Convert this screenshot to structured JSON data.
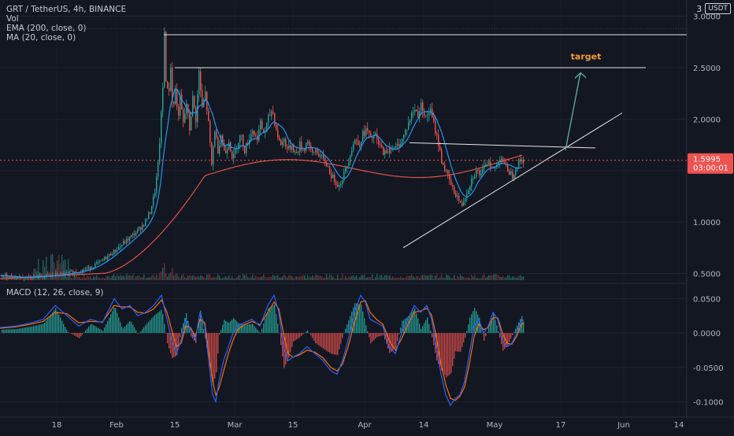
{
  "chart_data": [
    {
      "type": "candlestick",
      "title": "GRT / TetherUS, 4h, BINANCE",
      "indicators": [
        "Vol",
        "EMA (200, close, 0)",
        "MA (20, close, 0)"
      ],
      "currency": "USDT",
      "scale_label": "3",
      "y_ticks": [
        "3.0000",
        "2.5000",
        "2.0000",
        "1.5000",
        "1.0000",
        "0.5000"
      ],
      "ylim": [
        0.42,
        3.05
      ],
      "x_ticks": [
        "18",
        "Feb",
        "15",
        "Mar",
        "15",
        "Apr",
        "14",
        "May",
        "17",
        "Jun",
        "14"
      ],
      "last_price": "1.5995",
      "countdown": "03:00:01",
      "annotation": "target",
      "price_path": [
        [
          0,
          0.48
        ],
        [
          25,
          0.46
        ],
        [
          50,
          0.47
        ],
        [
          75,
          0.49
        ],
        [
          100,
          0.52
        ],
        [
          115,
          0.56
        ],
        [
          130,
          0.63
        ],
        [
          145,
          0.72
        ],
        [
          160,
          0.82
        ],
        [
          172,
          0.9
        ],
        [
          182,
          0.98
        ],
        [
          190,
          1.1
        ],
        [
          196,
          1.3
        ],
        [
          200,
          1.55
        ],
        [
          203,
          1.9
        ],
        [
          206,
          2.3
        ],
        [
          208,
          2.85
        ],
        [
          210,
          2.4
        ],
        [
          213,
          2.2
        ],
        [
          216,
          2.5
        ],
        [
          219,
          2.05
        ],
        [
          222,
          2.3
        ],
        [
          225,
          2.0
        ],
        [
          228,
          2.2
        ],
        [
          232,
          1.95
        ],
        [
          236,
          2.15
        ],
        [
          240,
          1.9
        ],
        [
          244,
          2.2
        ],
        [
          248,
          2.0
        ],
        [
          252,
          2.45
        ],
        [
          256,
          2.1
        ],
        [
          260,
          2.25
        ],
        [
          264,
          1.95
        ],
        [
          268,
          1.55
        ],
        [
          272,
          1.9
        ],
        [
          276,
          1.7
        ],
        [
          280,
          1.85
        ],
        [
          285,
          1.65
        ],
        [
          290,
          1.8
        ],
        [
          295,
          1.6
        ],
        [
          300,
          1.75
        ],
        [
          305,
          1.85
        ],
        [
          310,
          1.7
        ],
        [
          315,
          1.8
        ],
        [
          320,
          1.9
        ],
        [
          325,
          1.8
        ],
        [
          330,
          1.95
        ],
        [
          335,
          1.85
        ],
        [
          340,
          2.0
        ],
        [
          345,
          2.1
        ],
        [
          350,
          1.9
        ],
        [
          355,
          1.75
        ],
        [
          360,
          1.8
        ],
        [
          365,
          1.7
        ],
        [
          370,
          1.75
        ],
        [
          375,
          1.65
        ],
        [
          380,
          1.75
        ],
        [
          385,
          1.7
        ],
        [
          390,
          1.8
        ],
        [
          395,
          1.65
        ],
        [
          400,
          1.7
        ],
        [
          405,
          1.65
        ],
        [
          410,
          1.6
        ],
        [
          415,
          1.55
        ],
        [
          420,
          1.45
        ],
        [
          425,
          1.4
        ],
        [
          430,
          1.35
        ],
        [
          435,
          1.45
        ],
        [
          440,
          1.55
        ],
        [
          445,
          1.7
        ],
        [
          450,
          1.8
        ],
        [
          455,
          1.75
        ],
        [
          460,
          1.85
        ],
        [
          465,
          1.9
        ],
        [
          470,
          1.8
        ],
        [
          475,
          1.85
        ],
        [
          480,
          1.75
        ],
        [
          485,
          1.7
        ],
        [
          490,
          1.65
        ],
        [
          495,
          1.75
        ],
        [
          500,
          1.7
        ],
        [
          505,
          1.75
        ],
        [
          510,
          1.8
        ],
        [
          515,
          1.9
        ],
        [
          520,
          2.0
        ],
        [
          525,
          2.1
        ],
        [
          530,
          2.05
        ],
        [
          535,
          2.15
        ],
        [
          540,
          2.0
        ],
        [
          545,
          2.1
        ],
        [
          550,
          1.95
        ],
        [
          555,
          1.8
        ],
        [
          560,
          1.6
        ],
        [
          565,
          1.5
        ],
        [
          570,
          1.4
        ],
        [
          575,
          1.3
        ],
        [
          580,
          1.25
        ],
        [
          585,
          1.15
        ],
        [
          590,
          1.25
        ],
        [
          595,
          1.35
        ],
        [
          600,
          1.45
        ],
        [
          605,
          1.5
        ],
        [
          610,
          1.45
        ],
        [
          615,
          1.55
        ],
        [
          620,
          1.6
        ],
        [
          625,
          1.5
        ],
        [
          630,
          1.55
        ],
        [
          635,
          1.65
        ],
        [
          640,
          1.55
        ],
        [
          645,
          1.5
        ],
        [
          650,
          1.45
        ],
        [
          655,
          1.55
        ],
        [
          660,
          1.6
        ],
        [
          665,
          1.6
        ]
      ],
      "macd_yticks": [
        "0.0500",
        "0.0000",
        "-0.0500",
        "-0.1000"
      ],
      "macd_ylim": [
        -0.12,
        0.07
      ],
      "macd_line": [
        [
          0,
          0.008
        ],
        [
          20,
          0.01
        ],
        [
          40,
          0.015
        ],
        [
          55,
          0.02
        ],
        [
          70,
          0.04
        ],
        [
          85,
          0.025
        ],
        [
          100,
          0.01
        ],
        [
          115,
          0.02
        ],
        [
          130,
          0.015
        ],
        [
          145,
          0.05
        ],
        [
          155,
          0.035
        ],
        [
          165,
          0.04
        ],
        [
          175,
          0.025
        ],
        [
          185,
          0.03
        ],
        [
          195,
          0.04
        ],
        [
          205,
          0.055
        ],
        [
          212,
          0.02
        ],
        [
          218,
          -0.01
        ],
        [
          224,
          -0.03
        ],
        [
          230,
          -0.01
        ],
        [
          236,
          0.02
        ],
        [
          242,
          0.005
        ],
        [
          248,
          -0.01
        ],
        [
          254,
          0.03
        ],
        [
          260,
          0.01
        ],
        [
          266,
          -0.05
        ],
        [
          270,
          -0.09
        ],
        [
          274,
          -0.1
        ],
        [
          278,
          -0.07
        ],
        [
          284,
          -0.04
        ],
        [
          290,
          -0.02
        ],
        [
          296,
          0.0
        ],
        [
          302,
          0.01
        ],
        [
          310,
          0.015
        ],
        [
          320,
          0.02
        ],
        [
          330,
          0.01
        ],
        [
          340,
          0.04
        ],
        [
          348,
          0.055
        ],
        [
          354,
          0.03
        ],
        [
          360,
          -0.02
        ],
        [
          366,
          -0.04
        ],
        [
          372,
          -0.035
        ],
        [
          380,
          -0.03
        ],
        [
          390,
          -0.02
        ],
        [
          400,
          -0.03
        ],
        [
          410,
          -0.04
        ],
        [
          420,
          -0.055
        ],
        [
          428,
          -0.06
        ],
        [
          435,
          -0.04
        ],
        [
          442,
          -0.01
        ],
        [
          450,
          0.03
        ],
        [
          458,
          0.055
        ],
        [
          464,
          0.045
        ],
        [
          470,
          0.02
        ],
        [
          478,
          0.015
        ],
        [
          486,
          0.01
        ],
        [
          494,
          -0.02
        ],
        [
          502,
          -0.03
        ],
        [
          510,
          0.0
        ],
        [
          518,
          0.02
        ],
        [
          526,
          0.04
        ],
        [
          534,
          0.03
        ],
        [
          542,
          0.04
        ],
        [
          548,
          0.02
        ],
        [
          554,
          -0.02
        ],
        [
          560,
          -0.06
        ],
        [
          566,
          -0.09
        ],
        [
          572,
          -0.105
        ],
        [
          578,
          -0.095
        ],
        [
          584,
          -0.09
        ],
        [
          590,
          -0.07
        ],
        [
          596,
          -0.03
        ],
        [
          602,
          0.01
        ],
        [
          608,
          0.02
        ],
        [
          614,
          0.0
        ],
        [
          620,
          0.01
        ],
        [
          626,
          0.03
        ],
        [
          632,
          0.02
        ],
        [
          638,
          -0.01
        ],
        [
          644,
          -0.02
        ],
        [
          650,
          -0.015
        ],
        [
          656,
          0.0
        ],
        [
          662,
          0.02
        ],
        [
          665,
          0.018
        ]
      ],
      "signal_line": [
        [
          0,
          0.007
        ],
        [
          20,
          0.009
        ],
        [
          40,
          0.013
        ],
        [
          55,
          0.017
        ],
        [
          70,
          0.03
        ],
        [
          85,
          0.028
        ],
        [
          100,
          0.015
        ],
        [
          115,
          0.017
        ],
        [
          130,
          0.016
        ],
        [
          145,
          0.04
        ],
        [
          155,
          0.038
        ],
        [
          165,
          0.038
        ],
        [
          175,
          0.03
        ],
        [
          185,
          0.029
        ],
        [
          195,
          0.035
        ],
        [
          205,
          0.048
        ],
        [
          212,
          0.03
        ],
        [
          218,
          0.005
        ],
        [
          224,
          -0.02
        ],
        [
          230,
          -0.015
        ],
        [
          236,
          0.01
        ],
        [
          242,
          0.008
        ],
        [
          248,
          -0.005
        ],
        [
          254,
          0.02
        ],
        [
          260,
          0.015
        ],
        [
          266,
          -0.035
        ],
        [
          270,
          -0.07
        ],
        [
          274,
          -0.09
        ],
        [
          278,
          -0.08
        ],
        [
          284,
          -0.055
        ],
        [
          290,
          -0.03
        ],
        [
          296,
          -0.01
        ],
        [
          302,
          0.005
        ],
        [
          310,
          0.012
        ],
        [
          320,
          0.017
        ],
        [
          330,
          0.012
        ],
        [
          340,
          0.03
        ],
        [
          348,
          0.045
        ],
        [
          354,
          0.035
        ],
        [
          360,
          0.0
        ],
        [
          366,
          -0.03
        ],
        [
          372,
          -0.035
        ],
        [
          380,
          -0.032
        ],
        [
          390,
          -0.025
        ],
        [
          400,
          -0.028
        ],
        [
          410,
          -0.036
        ],
        [
          420,
          -0.05
        ],
        [
          428,
          -0.055
        ],
        [
          435,
          -0.045
        ],
        [
          442,
          -0.02
        ],
        [
          450,
          0.015
        ],
        [
          458,
          0.045
        ],
        [
          464,
          0.047
        ],
        [
          470,
          0.03
        ],
        [
          478,
          0.02
        ],
        [
          486,
          0.013
        ],
        [
          494,
          -0.01
        ],
        [
          502,
          -0.025
        ],
        [
          510,
          -0.008
        ],
        [
          518,
          0.012
        ],
        [
          526,
          0.03
        ],
        [
          534,
          0.032
        ],
        [
          542,
          0.036
        ],
        [
          548,
          0.026
        ],
        [
          554,
          -0.005
        ],
        [
          560,
          -0.045
        ],
        [
          566,
          -0.075
        ],
        [
          572,
          -0.095
        ],
        [
          578,
          -0.098
        ],
        [
          584,
          -0.092
        ],
        [
          590,
          -0.078
        ],
        [
          596,
          -0.045
        ],
        [
          602,
          -0.005
        ],
        [
          608,
          0.013
        ],
        [
          614,
          0.005
        ],
        [
          620,
          0.008
        ],
        [
          626,
          0.022
        ],
        [
          632,
          0.022
        ],
        [
          638,
          0.0
        ],
        [
          644,
          -0.015
        ],
        [
          650,
          -0.016
        ],
        [
          656,
          -0.005
        ],
        [
          662,
          0.012
        ],
        [
          665,
          0.015
        ]
      ],
      "drawing_lines": [
        {
          "from": [
            208,
            2.82
          ],
          "to": [
            872,
            2.82
          ]
        },
        {
          "from": [
            222,
            2.5
          ],
          "to": [
            820,
            2.5
          ]
        },
        {
          "from": [
            520,
            1.77
          ],
          "to": [
            756,
            1.72
          ]
        },
        {
          "from": [
            512,
            0.75
          ],
          "to": [
            790,
            2.06
          ]
        }
      ],
      "target_arrow": {
        "from": [
          718,
          1.7
        ],
        "to": [
          737,
          2.45
        ]
      }
    }
  ]
}
